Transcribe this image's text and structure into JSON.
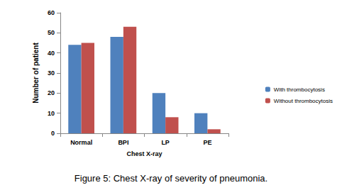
{
  "chart_data": {
    "type": "bar",
    "title": "Figure 5: Chest X-ray of severity of pneumonia.",
    "x_label": "Chest X-ray",
    "y_label": "Number of patient",
    "categories": [
      "Normal",
      "BPI",
      "LP",
      "PE"
    ],
    "series": [
      {
        "name": "With thrombocytosis",
        "color": "#4f81bd",
        "values": [
          44,
          48,
          20,
          10
        ]
      },
      {
        "name": "Without thrombocytosis",
        "color": "#c0504d",
        "values": [
          45,
          53,
          8,
          2
        ]
      }
    ],
    "ylim": [
      0,
      60
    ],
    "yticks": [
      0,
      10,
      20,
      30,
      40,
      50,
      60
    ],
    "grid": false,
    "legend": "right"
  }
}
